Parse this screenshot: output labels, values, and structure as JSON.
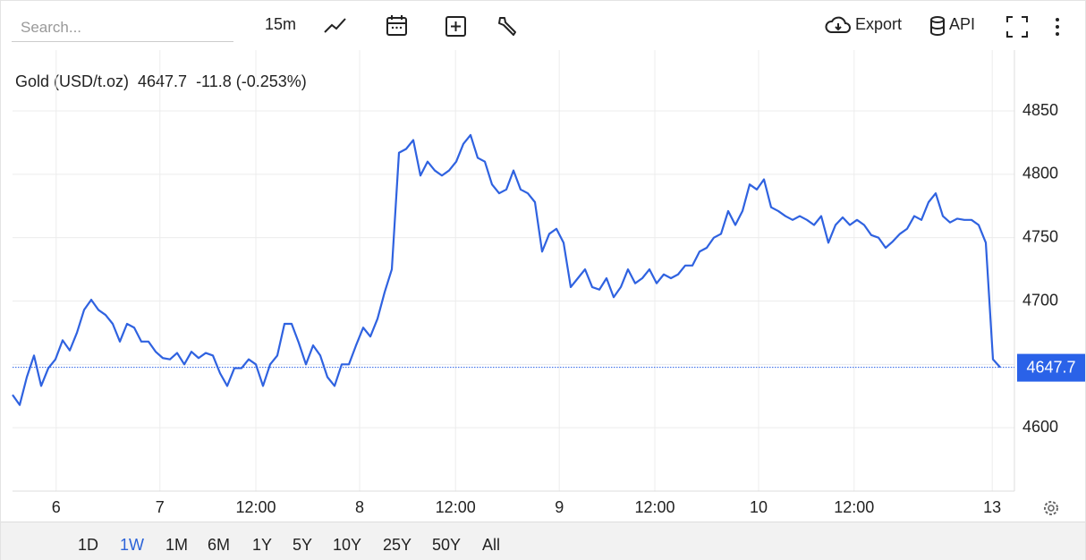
{
  "toolbar": {
    "search_placeholder": "Search...",
    "interval": "15m",
    "export": "Export",
    "api": "API"
  },
  "range_buttons": [
    "1D",
    "1W",
    "1M",
    "6M",
    "1Y",
    "5Y",
    "10Y",
    "25Y",
    "50Y",
    "All"
  ],
  "selected_range": "1W",
  "chart_data": {
    "type": "line",
    "series": [
      {
        "name": "Gold (USD/t.oz)",
        "color": "#2f62e0",
        "values": [
          4626,
          4618,
          4640,
          4657,
          4633,
          4647,
          4654,
          4669,
          4661,
          4675,
          4693,
          4701,
          4693,
          4689,
          4682,
          4668,
          4682,
          4679,
          4668,
          4668,
          4660,
          4655,
          4654,
          4659,
          4650,
          4660,
          4655,
          4659,
          4657,
          4643,
          4633,
          4647,
          4647,
          4654,
          4650,
          4633,
          4650,
          4657,
          4682,
          4682,
          4667,
          4650,
          4665,
          4657,
          4640,
          4633,
          4650,
          4650,
          4665,
          4679,
          4672,
          4686,
          4707,
          4725,
          4817,
          4820,
          4827,
          4799,
          4810,
          4803,
          4799,
          4803,
          4810,
          4824,
          4831,
          4813,
          4810,
          4792,
          4785,
          4788,
          4803,
          4788,
          4785,
          4778,
          4739,
          4753,
          4757,
          4746,
          4711,
          4718,
          4725,
          4711,
          4709,
          4718,
          4703,
          4711,
          4725,
          4714,
          4718,
          4725,
          4714,
          4721,
          4718,
          4721,
          4728,
          4728,
          4739,
          4742,
          4750,
          4753,
          4771,
          4760,
          4771,
          4792,
          4788,
          4796,
          4774,
          4771,
          4767,
          4764,
          4767,
          4764,
          4760,
          4767,
          4746,
          4760,
          4766,
          4760,
          4764,
          4760,
          4752,
          4750,
          4742,
          4747,
          4753,
          4757,
          4767,
          4764,
          4778,
          4785,
          4767,
          4762,
          4765,
          4764,
          4764,
          4760,
          4746,
          4654,
          4647.7
        ]
      }
    ],
    "last_value": 4647.7,
    "change_label": "-11.8 (-0.253%)",
    "change_color": "#e0524e",
    "last_label_color": "#2a62e8",
    "xlim": [
      0,
      140
    ],
    "xticks": [
      {
        "value": 6.1,
        "label": "6"
      },
      {
        "value": 20.6,
        "label": "7"
      },
      {
        "value": 34,
        "label": "12:00"
      },
      {
        "value": 48.5,
        "label": "8"
      },
      {
        "value": 61.9,
        "label": "12:00"
      },
      {
        "value": 76.4,
        "label": "9"
      },
      {
        "value": 89.75,
        "label": "12:00"
      },
      {
        "value": 104.25,
        "label": "10"
      },
      {
        "value": 117.6,
        "label": "12:00"
      },
      {
        "value": 136.9,
        "label": "13"
      }
    ],
    "ylim": [
      4550,
      4898
    ],
    "yticks": [
      4600,
      4650,
      4700,
      4750,
      4800,
      4850
    ],
    "grid": true
  }
}
